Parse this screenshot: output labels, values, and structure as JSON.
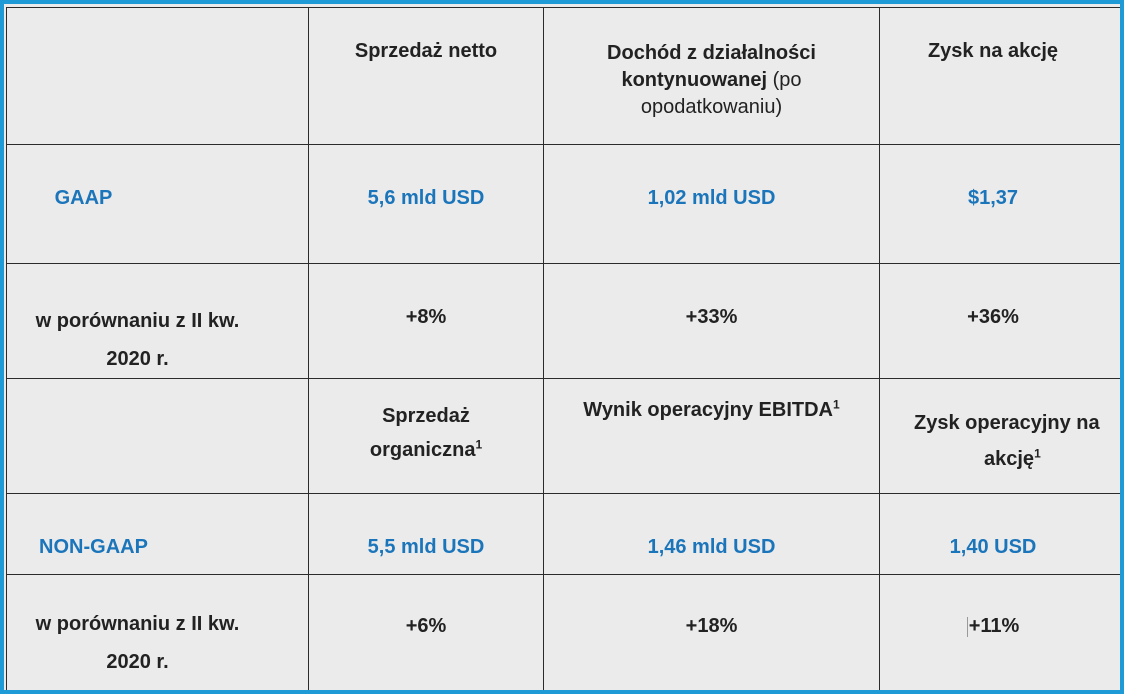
{
  "header": {
    "col1": "Sprzedaż netto",
    "col2_line1": "Dochód z działalności",
    "col2_line2_bold": "kontynuowanej",
    "col2_line2_rest": " (po",
    "col2_line3": "opodatkowaniu)",
    "col3": "Zysk na akcję"
  },
  "gaap": {
    "label": "GAAP",
    "sales": "5,6 mld USD",
    "income": "1,02 mld USD",
    "eps": "$1,37"
  },
  "gaap_compare": {
    "label_line1": "w porównaniu z II kw.",
    "label_line2": "2020 r.",
    "sales": "+8%",
    "income": "+33%",
    "eps": "+36%"
  },
  "nongaap_header": {
    "col1_line1": "Sprzedaż",
    "col1_line2": "organiczna",
    "col1_sup": "1",
    "col2": "Wynik operacyjny EBITDA",
    "col2_sup": "1",
    "col3_line1": "Zysk operacyjny na",
    "col3_line2": "akcję",
    "col3_sup": "1"
  },
  "nongaap": {
    "label": "NON-GAAP",
    "sales": "5,5 mld USD",
    "ebitda": "1,46 mld USD",
    "eps": "1,40 USD"
  },
  "nongaap_compare": {
    "label_line1": "w porównaniu z II kw.",
    "label_line2": "2020 r.",
    "sales": "+6%",
    "ebitda": "+18%",
    "eps": "+11%"
  },
  "colors": {
    "frame": "#1e9ad6",
    "accent_text": "#1b75bb",
    "cell_bg": "#ebebeb"
  }
}
